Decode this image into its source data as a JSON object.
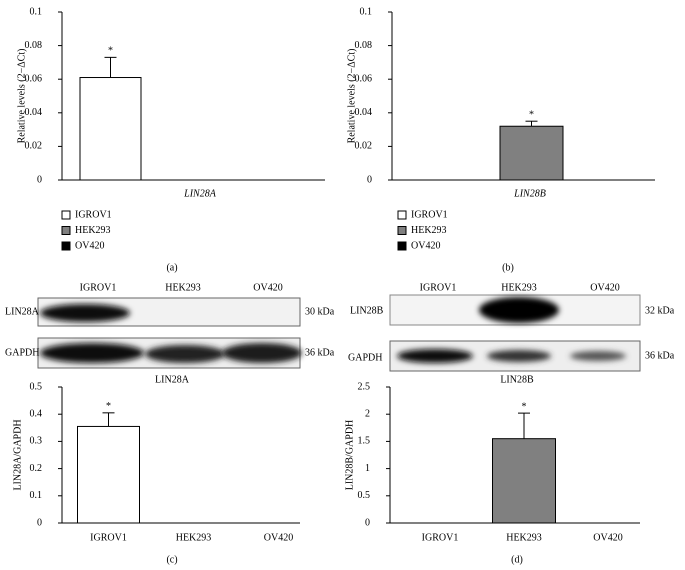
{
  "chart_data": [
    {
      "type": "bar",
      "label": "(a)",
      "y_label": "Relative levels (2−ΔCt)",
      "categories": [
        "LIN28A"
      ],
      "series": [
        {
          "name": "IGROV1",
          "color": "#ffffff",
          "values": [
            0.061
          ],
          "errors": [
            0.012
          ],
          "annotations": [
            "*"
          ]
        },
        {
          "name": "HEK293",
          "color": "#808080",
          "values": [
            0
          ],
          "errors": [
            null
          ],
          "annotations": [
            null
          ]
        },
        {
          "name": "OV420",
          "color": "#000000",
          "values": [
            0
          ],
          "errors": [
            null
          ],
          "annotations": [
            null
          ]
        }
      ],
      "ylim": [
        0,
        0.1
      ],
      "yticks": [
        0,
        0.02,
        0.04,
        0.06,
        0.08,
        0.1
      ]
    },
    {
      "type": "bar",
      "label": "(b)",
      "y_label": "Relative levels (2−ΔCt)",
      "categories": [
        "LIN28B"
      ],
      "series": [
        {
          "name": "IGROV1",
          "color": "#ffffff",
          "values": [
            0
          ],
          "errors": [
            null
          ],
          "annotations": [
            null
          ]
        },
        {
          "name": "HEK293",
          "color": "#808080",
          "values": [
            0.032
          ],
          "errors": [
            0.003
          ],
          "annotations": [
            "*"
          ]
        },
        {
          "name": "OV420",
          "color": "#000000",
          "values": [
            0
          ],
          "errors": [
            null
          ],
          "annotations": [
            null
          ]
        }
      ],
      "ylim": [
        0,
        0.1
      ],
      "yticks": [
        0,
        0.02,
        0.04,
        0.06,
        0.08,
        0.1
      ]
    },
    {
      "type": "bar",
      "label": "(c)",
      "y_label": "LIN28A/GAPDH",
      "categories": [
        "IGROV1",
        "HEK293",
        "OV420"
      ],
      "values": [
        0.355,
        0,
        0
      ],
      "errors": [
        0.05,
        null,
        null
      ],
      "annotations": [
        "*",
        null,
        null
      ],
      "colors": [
        "#ffffff",
        "#808080",
        "#000000"
      ],
      "ylim": [
        0,
        0.5
      ],
      "yticks": [
        0,
        0.1,
        0.2,
        0.3,
        0.4,
        0.5
      ]
    },
    {
      "type": "bar",
      "label": "(d)",
      "y_label": "LIN28B/GAPDH",
      "categories": [
        "IGROV1",
        "HEK293",
        "OV420"
      ],
      "values": [
        0,
        1.55,
        0
      ],
      "errors": [
        null,
        0.47,
        null
      ],
      "annotations": [
        null,
        "*",
        null
      ],
      "colors": [
        "#ffffff",
        "#808080",
        "#000000"
      ],
      "ylim": [
        0,
        2.5
      ],
      "yticks": [
        0,
        0.5,
        1,
        1.5,
        2,
        2.5
      ]
    }
  ],
  "blots": [
    {
      "lanes": [
        "IGROV1",
        "HEK293",
        "OV420"
      ],
      "rows": [
        "LIN28A",
        "GAPDH"
      ],
      "sizes": [
        "30 kDa",
        "36 kDa"
      ],
      "caption": "LIN28A"
    },
    {
      "lanes": [
        "IGROV1",
        "HEK293",
        "OV420"
      ],
      "rows": [
        "LIN28B",
        "GAPDH"
      ],
      "sizes": [
        "32 kDa",
        "36 kDa"
      ],
      "caption": "LIN28B"
    }
  ]
}
